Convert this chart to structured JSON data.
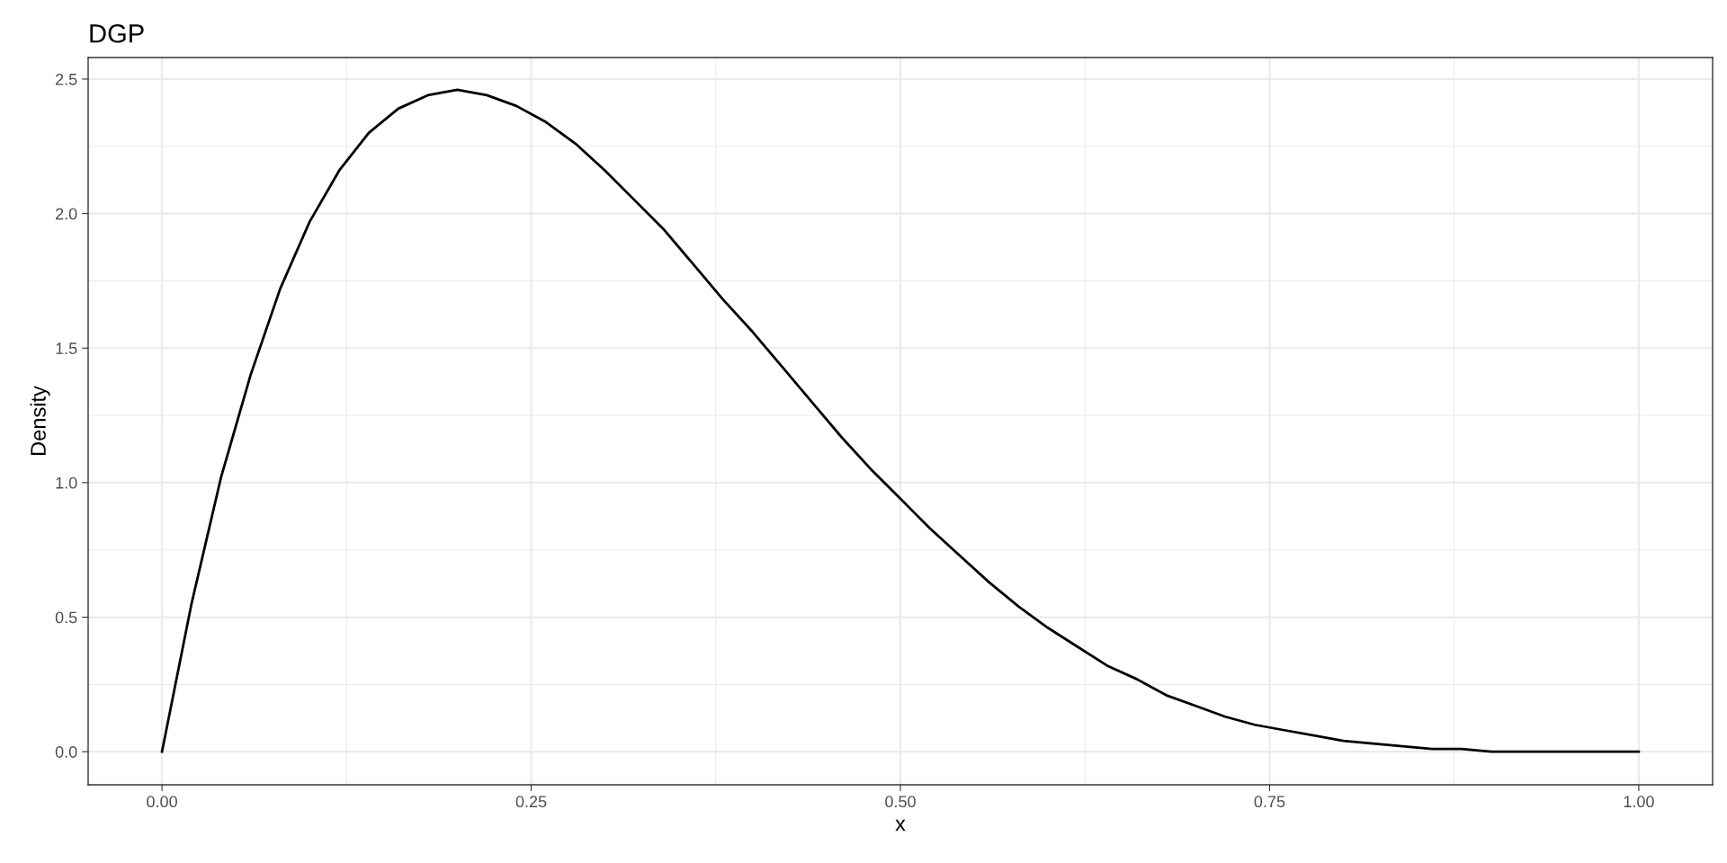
{
  "chart_data": {
    "type": "line",
    "title": "DGP",
    "xlabel": "x",
    "ylabel": "Density",
    "x": [
      0,
      0.02,
      0.04,
      0.06,
      0.08,
      0.1,
      0.12,
      0.14,
      0.16,
      0.18,
      0.2,
      0.22,
      0.24,
      0.26,
      0.28,
      0.3,
      0.32,
      0.34,
      0.36,
      0.38,
      0.4,
      0.42,
      0.44,
      0.46,
      0.48,
      0.5,
      0.52,
      0.54,
      0.56,
      0.58,
      0.6,
      0.62,
      0.64,
      0.66,
      0.68,
      0.7,
      0.72,
      0.74,
      0.76,
      0.78,
      0.8,
      0.82,
      0.84,
      0.86,
      0.88,
      0.9,
      0.92,
      0.94,
      0.96,
      0.98,
      1.0
    ],
    "series": [
      {
        "color": "#000000",
        "values": [
          0,
          0.55,
          1.02,
          1.4,
          1.72,
          1.97,
          2.16,
          2.3,
          2.39,
          2.44,
          2.46,
          2.44,
          2.4,
          2.34,
          2.26,
          2.16,
          2.05,
          1.94,
          1.81,
          1.68,
          1.56,
          1.43,
          1.3,
          1.17,
          1.05,
          0.94,
          0.83,
          0.73,
          0.63,
          0.54,
          0.46,
          0.39,
          0.32,
          0.27,
          0.21,
          0.17,
          0.13,
          0.1,
          0.08,
          0.06,
          0.04,
          0.03,
          0.02,
          0.01,
          0.01,
          0,
          0,
          0,
          0,
          0,
          0
        ]
      }
    ],
    "xlim": [
      -0.05,
      1.05
    ],
    "ylim": [
      -0.123,
      2.58
    ],
    "xticks": [
      {
        "value": 0,
        "label": "0.00"
      },
      {
        "value": 0.25,
        "label": "0.25"
      },
      {
        "value": 0.5,
        "label": "0.50"
      },
      {
        "value": 0.75,
        "label": "0.75"
      },
      {
        "value": 1,
        "label": "1.00"
      }
    ],
    "yticks": [
      {
        "value": 0,
        "label": "0.0"
      },
      {
        "value": 0.5,
        "label": "0.5"
      },
      {
        "value": 1,
        "label": "1.0"
      },
      {
        "value": 1.5,
        "label": "1.5"
      },
      {
        "value": 2,
        "label": "2.0"
      },
      {
        "value": 2.5,
        "label": "2.5"
      }
    ],
    "grid": true,
    "line_style": "solid",
    "marker": "none"
  }
}
